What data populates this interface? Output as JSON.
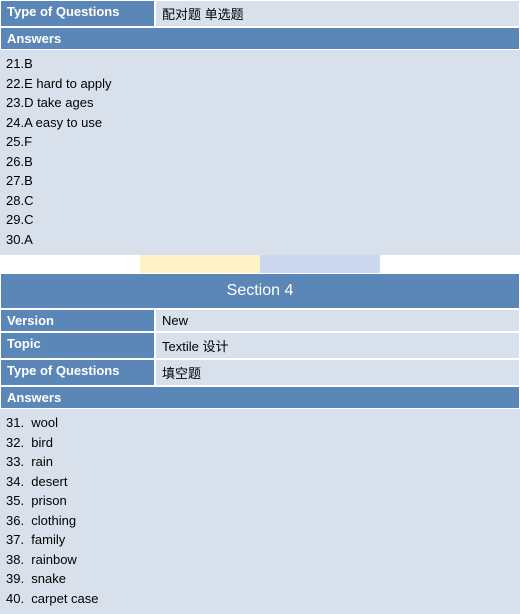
{
  "colors": {
    "header_bg": "#5b87b8",
    "header_text": "#ffffff",
    "body_bg": "#d8e0eb",
    "body_text": "#000000",
    "gap_yellow": "#fdf3c7",
    "gap_blue": "#cdd7ee",
    "border": "#ffffff"
  },
  "typography": {
    "base_fontsize": 13,
    "section_fontsize": 16,
    "font_family": "Arial, sans-serif"
  },
  "upper": {
    "type_label": "Type of Questions",
    "type_value": "配对题 单选题",
    "answers_label": "Answers",
    "answers": [
      "21.B",
      "22.E hard to apply",
      "23.D take ages",
      "24.A easy to use",
      "25.F",
      "26.B",
      "27.B",
      "28.C",
      "29.C",
      "30.A"
    ]
  },
  "section_title": "Section 4",
  "lower": {
    "version_label": "Version",
    "version_value": "New",
    "topic_label": "Topic",
    "topic_value": "Textile 设计",
    "type_label": "Type of Questions",
    "type_value": "填空题",
    "answers_label": "Answers",
    "answers": [
      "31.  wool",
      "32.  bird",
      "33.  rain",
      "34.  desert",
      "35.  prison",
      "36.  clothing",
      "37.  family",
      "38.  rainbow",
      "39.  snake",
      "40.  carpet case"
    ]
  }
}
